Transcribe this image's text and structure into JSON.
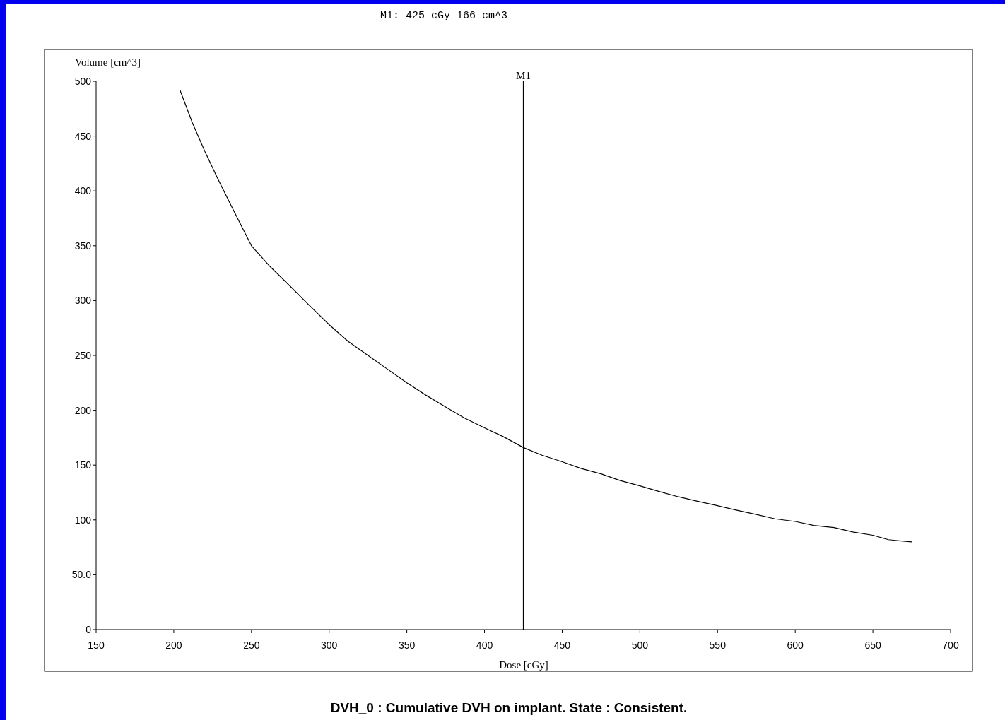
{
  "chart_data": {
    "type": "line",
    "title": "DVH_0 :  Cumulative DVH on implant. State : Consistent.",
    "annotations": [
      "M1: 425 cGy 166 cm^3"
    ],
    "xlabel": "Dose [cGy]",
    "ylabel": "Volume [cm^3]",
    "series": [
      {
        "color": "#000000",
        "x": [
          204,
          212,
          220,
          228,
          237.5,
          250,
          262,
          275,
          287,
          300,
          312,
          325,
          337,
          350,
          362,
          375,
          387,
          400,
          412,
          425,
          437,
          450,
          462,
          475,
          487,
          500,
          512,
          525,
          537,
          550,
          562,
          575,
          587,
          600,
          612,
          625,
          637,
          650,
          660,
          667,
          675
        ],
        "values": [
          492,
          462,
          436,
          412,
          385,
          350,
          331,
          313,
          296,
          278,
          263,
          250,
          238,
          225,
          214,
          203,
          193,
          184,
          176,
          166,
          159,
          153,
          147,
          142,
          136,
          131,
          126,
          121,
          117,
          113,
          109,
          105,
          101,
          98.6,
          95,
          93,
          89,
          86,
          82,
          81,
          80
        ]
      }
    ],
    "xlim": [
      150,
      700
    ],
    "xticks": [
      150,
      200,
      250,
      300,
      350,
      400,
      450,
      500,
      550,
      600,
      650,
      700
    ],
    "ylim": [
      0,
      500
    ],
    "yticks": [
      0,
      {
        "value": 50,
        "label": "50.0"
      },
      100,
      150,
      200,
      250,
      300,
      350,
      400,
      450,
      500
    ],
    "ref_lines": [
      {
        "axis": "x",
        "value": 425,
        "label": "M1",
        "color": "#000000"
      }
    ],
    "grid": false,
    "marker": "none",
    "line_style": "solid"
  }
}
